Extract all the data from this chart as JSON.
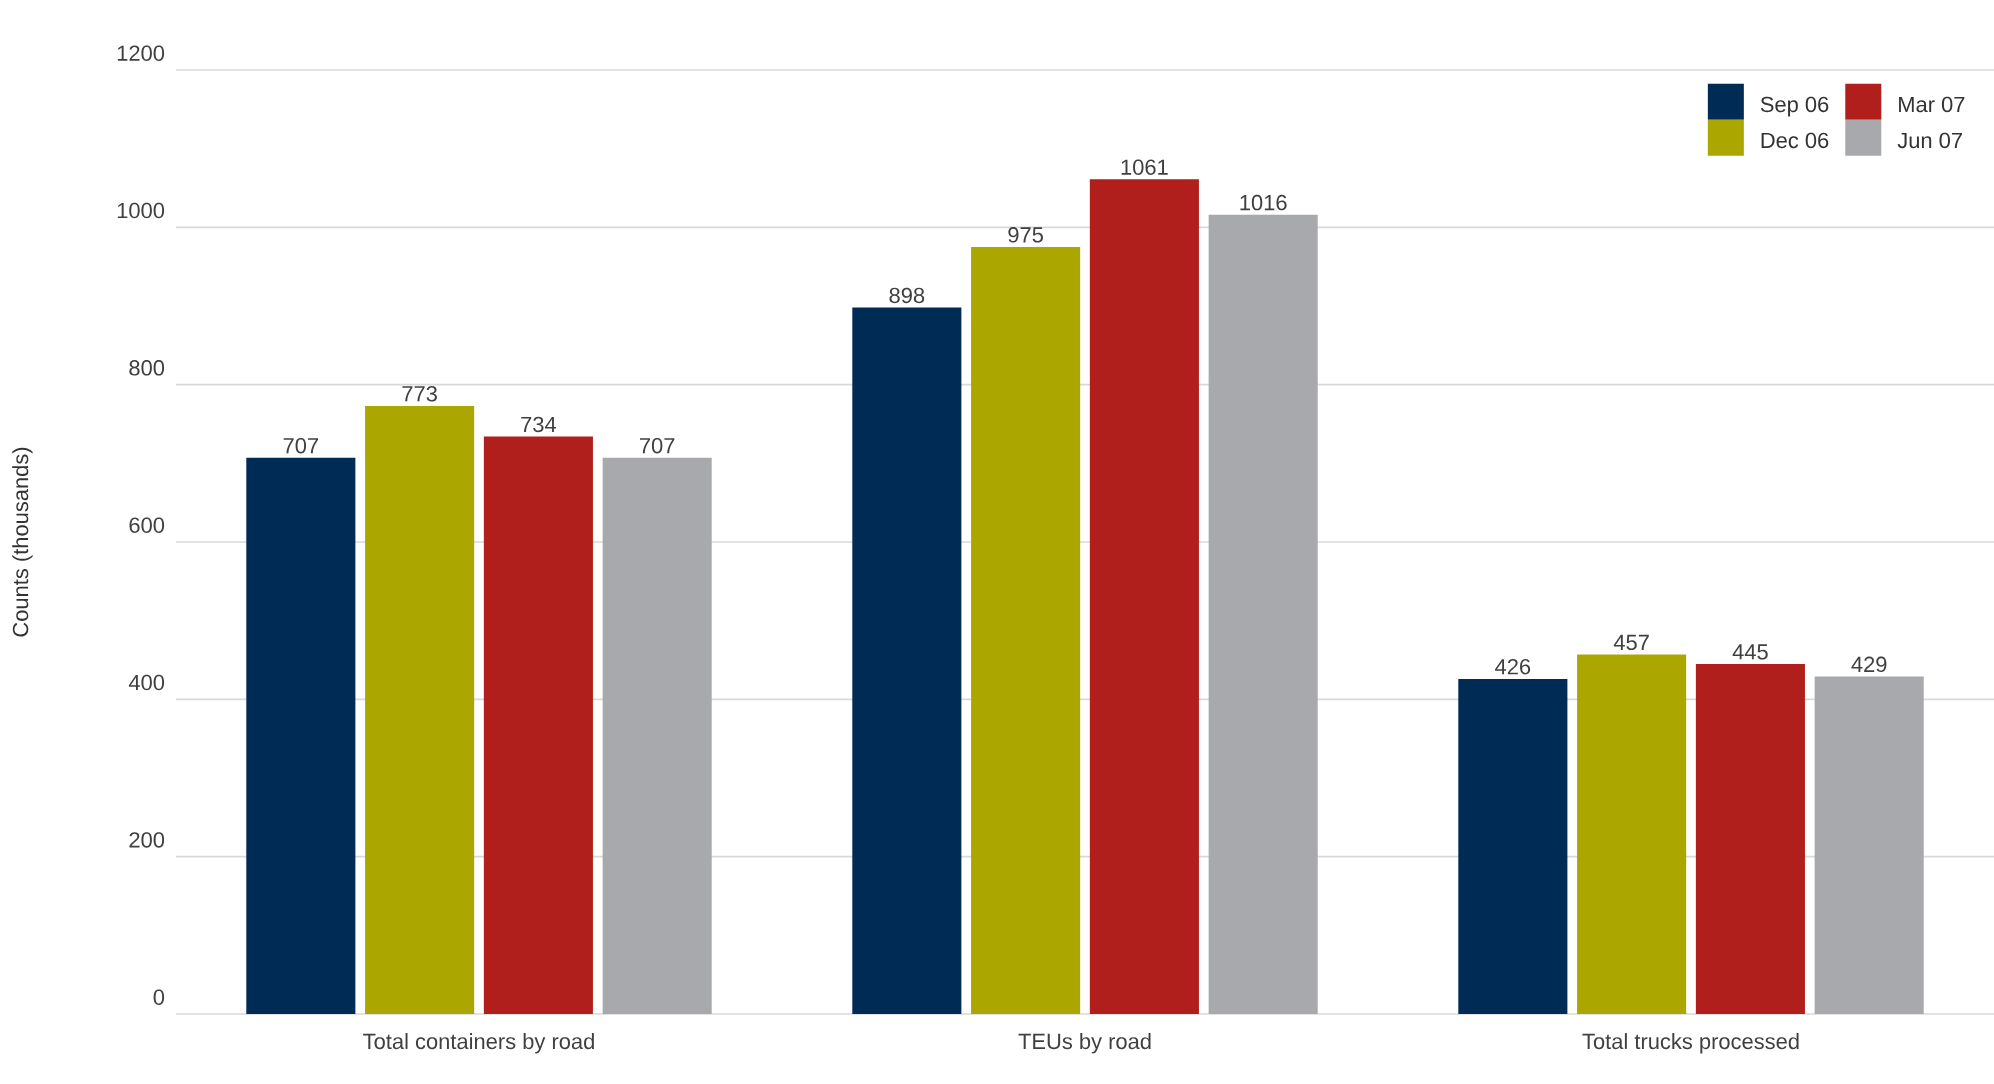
{
  "chart_data": {
    "type": "bar",
    "ylabel": "Counts (thousands)",
    "categories": [
      "Total containers by road",
      "TEUs by road",
      "Total trucks processed"
    ],
    "series": [
      {
        "name": "Sep 06",
        "color": "#002b55",
        "values": [
          707,
          898,
          426
        ]
      },
      {
        "name": "Dec 06",
        "color": "#aba700",
        "values": [
          773,
          975,
          457
        ]
      },
      {
        "name": "Mar 07",
        "color": "#b01f1c",
        "values": [
          734,
          1061,
          445
        ]
      },
      {
        "name": "Jun 07",
        "color": "#a7a9ac",
        "values": [
          707,
          1016,
          429
        ]
      }
    ],
    "ylim": [
      0,
      1200
    ],
    "yticks": [
      0,
      200,
      400,
      600,
      800,
      1000,
      1200
    ],
    "grid": "y",
    "legend": "top right",
    "data_labels": true
  }
}
